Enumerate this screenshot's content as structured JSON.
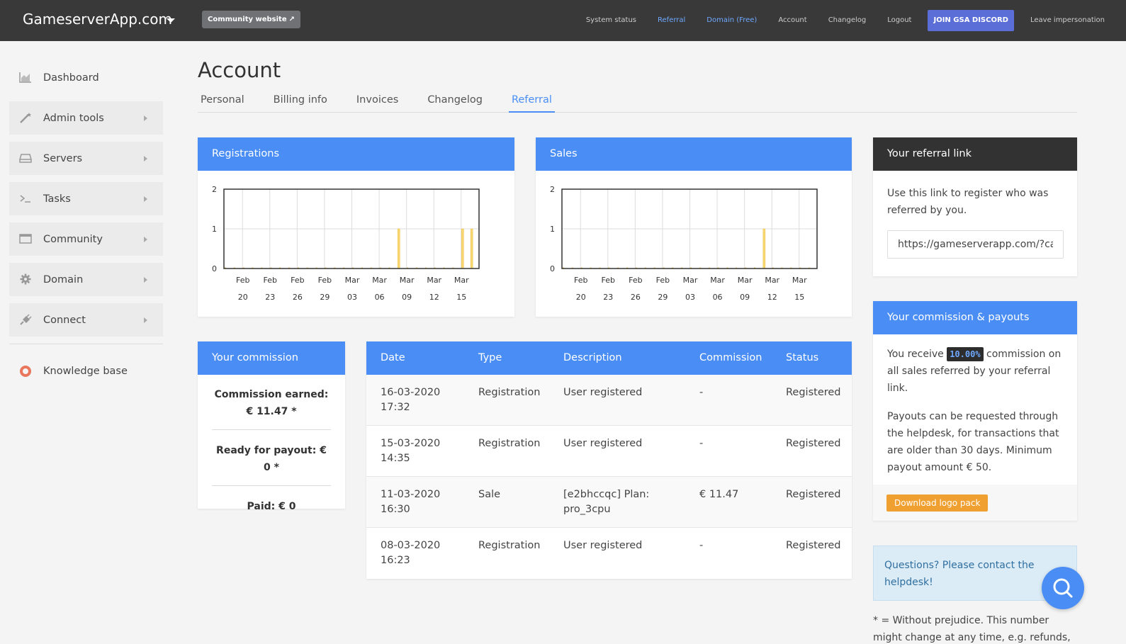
{
  "topbar": {
    "brand": "GameserverApp.com",
    "community_btn": "Community website",
    "nav": [
      "System status",
      "Referral",
      "Domain (Free)",
      "Account",
      "Changelog",
      "Logout",
      "JOIN GSA DISCORD",
      "Leave impersonation"
    ]
  },
  "sidebar": {
    "items": [
      {
        "label": "Dashboard",
        "icon": "area-chart-icon"
      },
      {
        "label": "Admin tools",
        "icon": "magic-wand-icon"
      },
      {
        "label": "Servers",
        "icon": "hard-drive-icon"
      },
      {
        "label": "Tasks",
        "icon": "terminal-icon"
      },
      {
        "label": "Community",
        "icon": "window-icon"
      },
      {
        "label": "Domain",
        "icon": "gear-icon"
      },
      {
        "label": "Connect",
        "icon": "plug-icon"
      },
      {
        "label": "Knowledge base",
        "icon": "lifebuoy-icon"
      }
    ]
  },
  "page": {
    "title": "Account",
    "tabs": [
      "Personal",
      "Billing info",
      "Invoices",
      "Changelog",
      "Referral"
    ],
    "active_tab": "Referral"
  },
  "colors": {
    "accent": "#4a8ef5",
    "bar": "#f7d774",
    "bar_stroke": "#f0c040",
    "dark": "#393939"
  },
  "chart_data": [
    {
      "type": "bar",
      "title": "Registrations",
      "x_ticks": [
        [
          "Feb",
          "20"
        ],
        [
          "Feb",
          "23"
        ],
        [
          "Feb",
          "26"
        ],
        [
          "Feb",
          "29"
        ],
        [
          "Mar",
          "03"
        ],
        [
          "Mar",
          "06"
        ],
        [
          "Mar",
          "09"
        ],
        [
          "Mar",
          "12"
        ],
        [
          "Mar",
          "15"
        ]
      ],
      "y_ticks": [
        "0",
        "1",
        "2"
      ],
      "ylim": [
        0,
        2
      ],
      "xrange_days": [
        "2020-02-18",
        "2020-03-16"
      ],
      "bars": [
        {
          "date": "2020-03-08",
          "value": 1
        },
        {
          "date": "2020-03-15",
          "value": 1
        },
        {
          "date": "2020-03-16",
          "value": 1
        }
      ],
      "grid": true
    },
    {
      "type": "bar",
      "title": "Sales",
      "x_ticks": [
        [
          "Feb",
          "20"
        ],
        [
          "Feb",
          "23"
        ],
        [
          "Feb",
          "26"
        ],
        [
          "Feb",
          "29"
        ],
        [
          "Mar",
          "03"
        ],
        [
          "Mar",
          "06"
        ],
        [
          "Mar",
          "09"
        ],
        [
          "Mar",
          "12"
        ],
        [
          "Mar",
          "15"
        ]
      ],
      "y_ticks": [
        "0",
        "1",
        "2"
      ],
      "ylim": [
        0,
        2
      ],
      "xrange_days": [
        "2020-02-18",
        "2020-03-16"
      ],
      "bars": [
        {
          "date": "2020-03-11",
          "value": 1
        }
      ],
      "grid": true
    }
  ],
  "commission": {
    "title": "Your commission",
    "earned": "Commission earned: € 11.47 *",
    "ready": "Ready for payout: € 0 *",
    "paid": "Paid: € 0"
  },
  "table": {
    "headers": [
      "Date",
      "Type",
      "Description",
      "Commission",
      "Status"
    ],
    "rows": [
      {
        "date": "16-03-2020 17:32",
        "type": "Registration",
        "description": "User registered",
        "commission": "-",
        "status": "Registered"
      },
      {
        "date": "15-03-2020 14:35",
        "type": "Registration",
        "description": "User registered",
        "commission": "-",
        "status": "Registered"
      },
      {
        "date": "11-03-2020 16:30",
        "type": "Sale",
        "description": "[e2bhccqc] Plan: pro_3cpu",
        "commission": "€ 11.47",
        "status": "Registered"
      },
      {
        "date": "08-03-2020 16:23",
        "type": "Registration",
        "description": "User registered",
        "commission": "-",
        "status": "Registered"
      }
    ]
  },
  "referral": {
    "title": "Your referral link",
    "text": "Use this link to register who was referred by you.",
    "link_value": "https://gameserverapp.com/?cam"
  },
  "payouts": {
    "title": "Your commission & payouts",
    "receive_pre": "You receive",
    "rate": "10.00%",
    "receive_post": "commission on all sales referred by your referral link.",
    "text2": "Payouts can be requested through the helpdesk, for transactions that are older than 30 days. Minimum payout amount € 50.",
    "button": "Download logo pack"
  },
  "helpdesk": "Questions? Please contact the helpdesk!",
  "footnote": "* = Without prejudice. This number might change at any time, e.g. refunds, ..."
}
